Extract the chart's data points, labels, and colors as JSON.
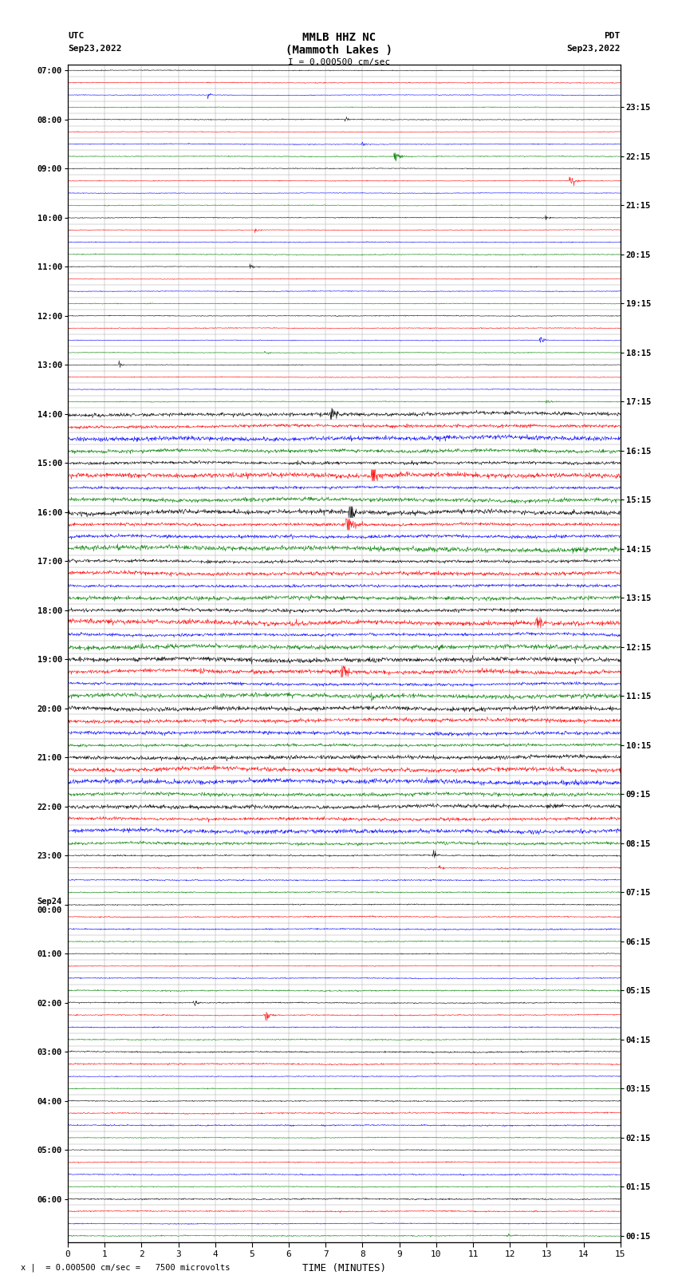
{
  "title_line1": "MMLB HHZ NC",
  "title_line2": "(Mammoth Lakes )",
  "scale_text": "I = 0.000500 cm/sec",
  "bottom_scale_text": "= 0.000500 cm/sec =   7500 microvolts",
  "xlabel": "TIME (MINUTES)",
  "left_times": [
    "07:00",
    "",
    "",
    "",
    "08:00",
    "",
    "",
    "",
    "09:00",
    "",
    "",
    "",
    "10:00",
    "",
    "",
    "",
    "11:00",
    "",
    "",
    "",
    "12:00",
    "",
    "",
    "",
    "13:00",
    "",
    "",
    "",
    "14:00",
    "",
    "",
    "",
    "15:00",
    "",
    "",
    "",
    "16:00",
    "",
    "",
    "",
    "17:00",
    "",
    "",
    "",
    "18:00",
    "",
    "",
    "",
    "19:00",
    "",
    "",
    "",
    "20:00",
    "",
    "",
    "",
    "21:00",
    "",
    "",
    "",
    "22:00",
    "",
    "",
    "",
    "23:00",
    "",
    "",
    "",
    "Sep24\n00:00",
    "",
    "",
    "",
    "01:00",
    "",
    "",
    "",
    "02:00",
    "",
    "",
    "",
    "03:00",
    "",
    "",
    "",
    "04:00",
    "",
    "",
    "",
    "05:00",
    "",
    "",
    "",
    "06:00",
    "",
    "",
    ""
  ],
  "right_times": [
    "00:15",
    "",
    "",
    "",
    "01:15",
    "",
    "",
    "",
    "02:15",
    "",
    "",
    "",
    "03:15",
    "",
    "",
    "",
    "04:15",
    "",
    "",
    "",
    "05:15",
    "",
    "",
    "",
    "06:15",
    "",
    "",
    "",
    "07:15",
    "",
    "",
    "",
    "08:15",
    "",
    "",
    "",
    "09:15",
    "",
    "",
    "",
    "10:15",
    "",
    "",
    "",
    "11:15",
    "",
    "",
    "",
    "12:15",
    "",
    "",
    "",
    "13:15",
    "",
    "",
    "",
    "14:15",
    "",
    "",
    "",
    "15:15",
    "",
    "",
    "",
    "16:15",
    "",
    "",
    "",
    "17:15",
    "",
    "",
    "",
    "18:15",
    "",
    "",
    "",
    "19:15",
    "",
    "",
    "",
    "20:15",
    "",
    "",
    "",
    "21:15",
    "",
    "",
    "",
    "22:15",
    "",
    "",
    "",
    "23:15",
    "",
    "",
    ""
  ],
  "n_rows": 96,
  "row_colors": [
    "black",
    "red",
    "blue",
    "green"
  ],
  "background_color": "white",
  "grid_color": "#aaaaaa",
  "xmin": 0,
  "xmax": 15,
  "figsize": [
    8.5,
    16.13
  ]
}
